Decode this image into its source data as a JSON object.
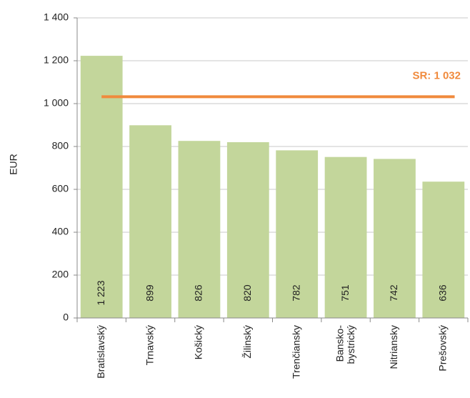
{
  "chart_data": {
    "type": "bar",
    "y_label": "EUR",
    "categories": [
      "Bratislavský",
      "Trnavský",
      "Košický",
      "Žilinský",
      "Trenčiansky",
      "Bansko-\nbystrický",
      "Nitriansky",
      "Prešovský"
    ],
    "values": [
      1223,
      899,
      826,
      820,
      782,
      751,
      742,
      636
    ],
    "value_labels": [
      "1 223",
      "899",
      "826",
      "820",
      "782",
      "751",
      "742",
      "636"
    ],
    "color": "#c3d69b",
    "ylim": [
      0,
      1400
    ],
    "yticks": [
      0,
      200,
      400,
      600,
      800,
      {
        "value": 1000,
        "label": "1 000"
      },
      {
        "value": 1200,
        "label": "1 200"
      },
      {
        "value": 1400,
        "label": "1 400"
      }
    ],
    "grid": true,
    "reference_line": {
      "value": 1032,
      "label": "SR: 1 032",
      "color": "#f08a3c"
    }
  }
}
